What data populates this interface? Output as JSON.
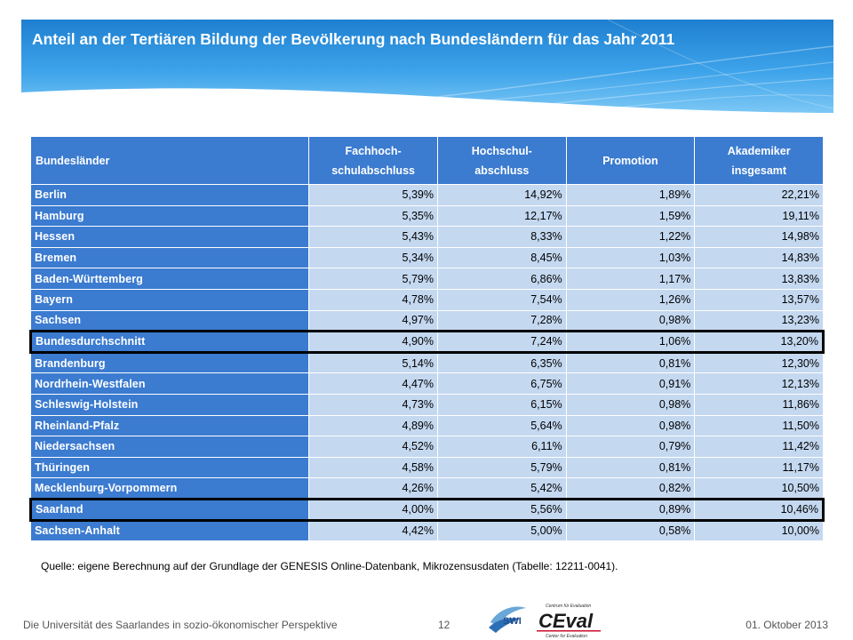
{
  "header": {
    "title": "Anteil an der Tertiären Bildung der Bevölkerung nach Bundesländern für das Jahr 2011"
  },
  "table": {
    "columns": [
      "Bundesländer",
      "Fachhoch-\nschulabschluss",
      "Hochschul-\nabschluss",
      "Promotion",
      "Akademiker\ninsgesamt"
    ],
    "rows": [
      {
        "name": "Berlin",
        "values": [
          "5,39%",
          "14,92%",
          "1,89%",
          "22,21%"
        ],
        "highlight": false
      },
      {
        "name": "Hamburg",
        "values": [
          "5,35%",
          "12,17%",
          "1,59%",
          "19,11%"
        ],
        "highlight": false
      },
      {
        "name": "Hessen",
        "values": [
          "5,43%",
          "8,33%",
          "1,22%",
          "14,98%"
        ],
        "highlight": false
      },
      {
        "name": "Bremen",
        "values": [
          "5,34%",
          "8,45%",
          "1,03%",
          "14,83%"
        ],
        "highlight": false
      },
      {
        "name": "Baden-Württemberg",
        "values": [
          "5,79%",
          "6,86%",
          "1,17%",
          "13,83%"
        ],
        "highlight": false
      },
      {
        "name": "Bayern",
        "values": [
          "4,78%",
          "7,54%",
          "1,26%",
          "13,57%"
        ],
        "highlight": false
      },
      {
        "name": "Sachsen",
        "values": [
          "4,97%",
          "7,28%",
          "0,98%",
          "13,23%"
        ],
        "highlight": false
      },
      {
        "name": "Bundesdurchschnitt",
        "values": [
          "4,90%",
          "7,24%",
          "1,06%",
          "13,20%"
        ],
        "highlight": true
      },
      {
        "name": "Brandenburg",
        "values": [
          "5,14%",
          "6,35%",
          "0,81%",
          "12,30%"
        ],
        "highlight": false
      },
      {
        "name": "Nordrhein-Westfalen",
        "values": [
          "4,47%",
          "6,75%",
          "0,91%",
          "12,13%"
        ],
        "highlight": false
      },
      {
        "name": "Schleswig-Holstein",
        "values": [
          "4,73%",
          "6,15%",
          "0,98%",
          "11,86%"
        ],
        "highlight": false
      },
      {
        "name": "Rheinland-Pfalz",
        "values": [
          "4,89%",
          "5,64%",
          "0,98%",
          "11,50%"
        ],
        "highlight": false
      },
      {
        "name": "Niedersachsen",
        "values": [
          "4,52%",
          "6,11%",
          "0,79%",
          "11,42%"
        ],
        "highlight": false
      },
      {
        "name": "Thüringen",
        "values": [
          "4,58%",
          "5,79%",
          "0,81%",
          "11,17%"
        ],
        "highlight": false
      },
      {
        "name": "Mecklenburg-Vorpommern",
        "values": [
          "4,26%",
          "5,42%",
          "0,82%",
          "10,50%"
        ],
        "highlight": false
      },
      {
        "name": "Saarland",
        "values": [
          "4,00%",
          "5,56%",
          "0,89%",
          "10,46%"
        ],
        "highlight": true
      },
      {
        "name": "Sachsen-Anhalt",
        "values": [
          "4,42%",
          "5,00%",
          "0,58%",
          "10,00%"
        ],
        "highlight": false
      }
    ]
  },
  "source": "Quelle: eigene Berechnung auf der Grundlage der GENESIS Online-Datenbank, Mikrozensusdaten (Tabelle: 12211-0041).",
  "footer": {
    "left": "Die Universität des Saarlandes in sozio-ökonomischer Perspektive",
    "page": "12",
    "date": "01. Oktober 2013"
  },
  "logos": {
    "swi": {
      "text": "SWI",
      "icon": "swi-logo"
    },
    "ceval": {
      "top_text": "Centrum für Evaluation",
      "main_text": "CEval",
      "bottom_text": "Center for Evaluation",
      "icon": "ceval-logo"
    }
  },
  "colors": {
    "banner": "#2b8fd9",
    "header_cell": "#3b7bd0",
    "value_cell": "#c4d8f0",
    "highlight_border": "#000000"
  }
}
